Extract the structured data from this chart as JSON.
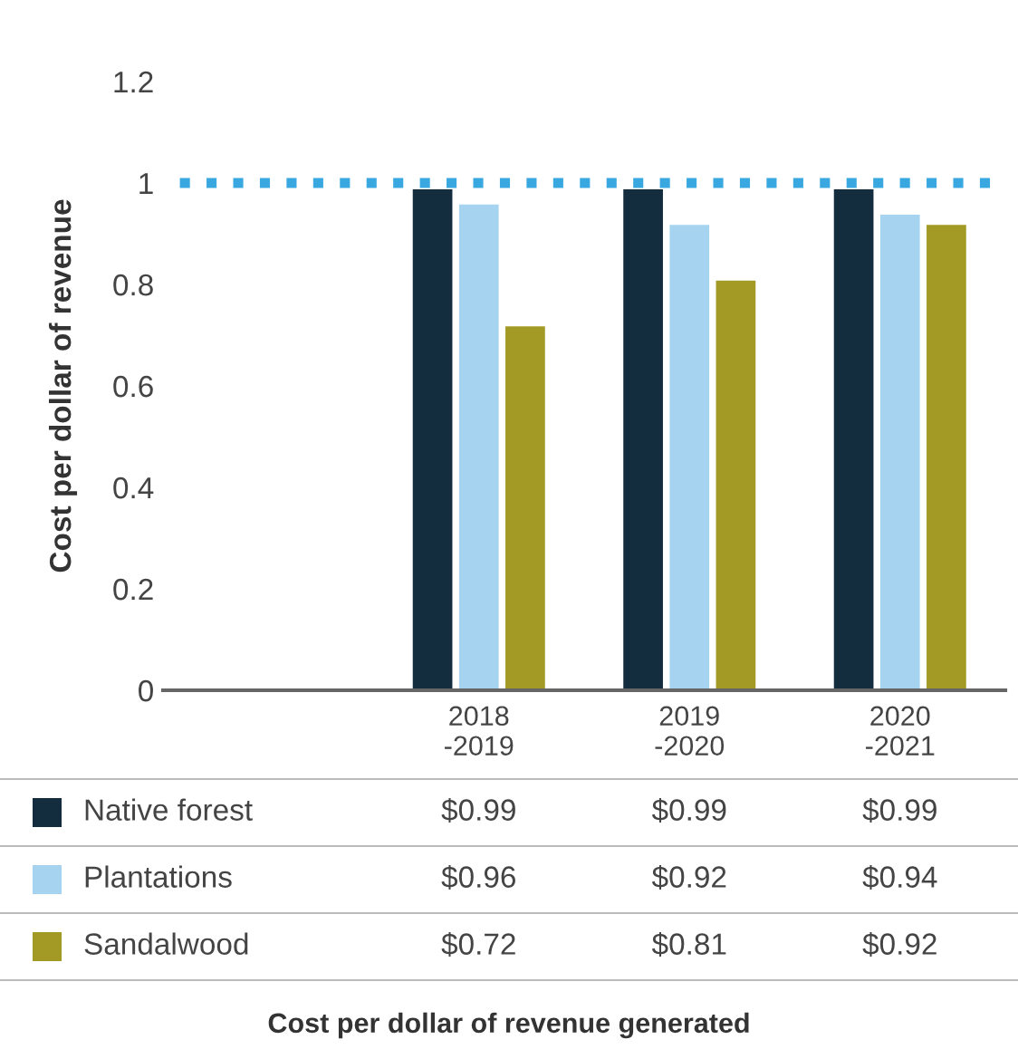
{
  "chart_data": {
    "type": "bar",
    "categories": [
      null,
      "2018\n-2019",
      "2019\n-2020",
      "2020\n-2021"
    ],
    "series": [
      {
        "name": "Native forest",
        "color": "#132d3f",
        "values": [
          null,
          0.99,
          0.99,
          0.99
        ],
        "value_labels": [
          null,
          "$0.99",
          "$0.99",
          "$0.99"
        ]
      },
      {
        "name": "Plantations",
        "color": "#a6d4f0",
        "values": [
          null,
          0.96,
          0.92,
          0.94
        ],
        "value_labels": [
          null,
          "$0.96",
          "$0.92",
          "$0.94"
        ]
      },
      {
        "name": "Sandalwood",
        "color": "#a39a25",
        "values": [
          null,
          0.72,
          0.81,
          0.92
        ],
        "value_labels": [
          null,
          "$0.72",
          "$0.81",
          "$0.92"
        ]
      }
    ],
    "ylabel": "Cost per dollar of revenue",
    "ylim": [
      0,
      1.2
    ],
    "yticks": [
      0,
      0.2,
      0.4,
      0.6,
      0.8,
      1,
      1.2
    ],
    "ref_lines": [
      {
        "axis": "y",
        "value": 1,
        "label": null,
        "color": "#3aa8e0",
        "line_style": "dotted"
      }
    ],
    "annotations": [
      "Cost per dollar of revenue generated"
    ],
    "grid": false,
    "legend": "bottom"
  }
}
